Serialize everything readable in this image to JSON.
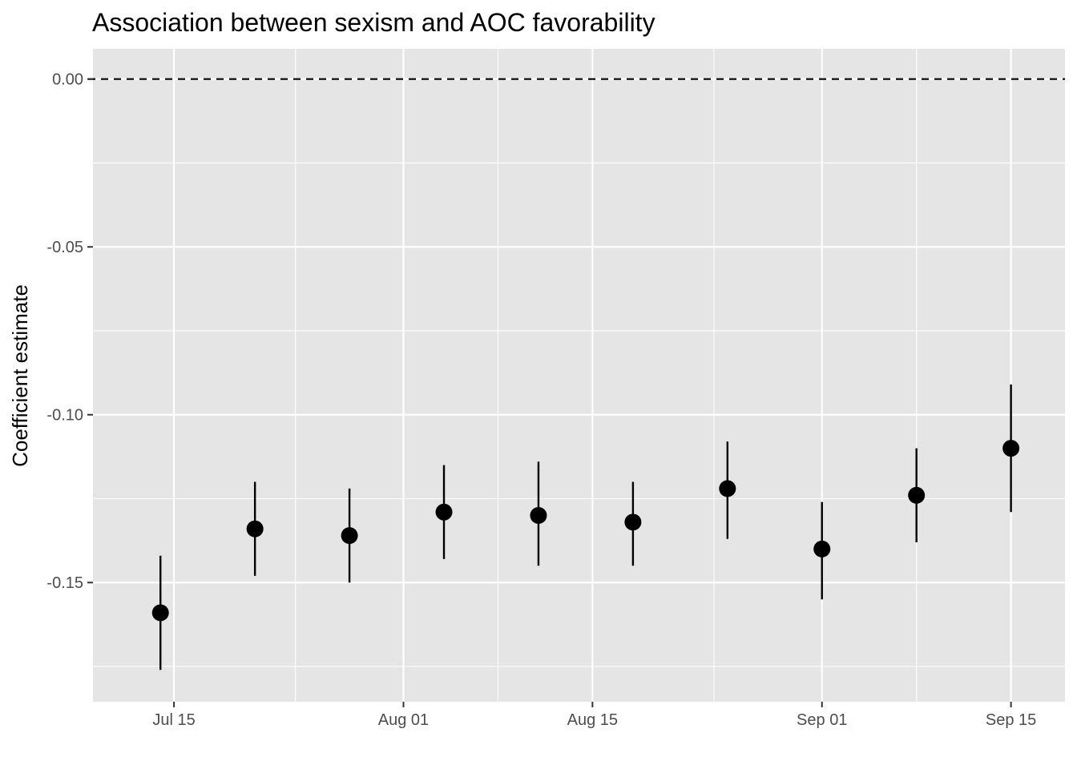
{
  "chart_data": {
    "type": "scatter",
    "title": "Association between sexism and AOC favorability",
    "xlabel": "",
    "ylabel": "Coefficient estimate",
    "x_axis": {
      "type": "date",
      "range": [
        "2019-07-09",
        "2019-09-19"
      ],
      "ticks": [
        {
          "date": "2019-07-15",
          "label": "Jul 15"
        },
        {
          "date": "2019-08-01",
          "label": "Aug 01"
        },
        {
          "date": "2019-08-15",
          "label": "Aug 15"
        },
        {
          "date": "2019-09-01",
          "label": "Sep 01"
        },
        {
          "date": "2019-09-15",
          "label": "Sep 15"
        }
      ],
      "minor_ticks": [
        "2019-07-24",
        "2019-08-08",
        "2019-08-24",
        "2019-09-08"
      ]
    },
    "y_axis": {
      "range": [
        -0.1855,
        0.009
      ],
      "ticks": [
        {
          "value": 0.0,
          "label": "0.00"
        },
        {
          "value": -0.05,
          "label": "-0.05"
        },
        {
          "value": -0.1,
          "label": "-0.10"
        },
        {
          "value": -0.15,
          "label": "-0.15"
        }
      ],
      "minor_ticks": [
        -0.025,
        -0.075,
        -0.125,
        -0.175
      ]
    },
    "reference_line": {
      "y": 0.0,
      "style": "dashed"
    },
    "grid": true,
    "legend": "none",
    "colors": {
      "panel": "#e5e5e5",
      "grid": "#ffffff",
      "marks": "#000000",
      "tick_text": "#4d4d4d"
    },
    "points": [
      {
        "date": "2019-07-14",
        "estimate": -0.159,
        "lower": -0.176,
        "upper": -0.142
      },
      {
        "date": "2019-07-21",
        "estimate": -0.134,
        "lower": -0.148,
        "upper": -0.12
      },
      {
        "date": "2019-07-28",
        "estimate": -0.136,
        "lower": -0.15,
        "upper": -0.122
      },
      {
        "date": "2019-08-04",
        "estimate": -0.129,
        "lower": -0.143,
        "upper": -0.115
      },
      {
        "date": "2019-08-11",
        "estimate": -0.13,
        "lower": -0.145,
        "upper": -0.114
      },
      {
        "date": "2019-08-18",
        "estimate": -0.132,
        "lower": -0.145,
        "upper": -0.12
      },
      {
        "date": "2019-08-25",
        "estimate": -0.122,
        "lower": -0.137,
        "upper": -0.108
      },
      {
        "date": "2019-09-01",
        "estimate": -0.14,
        "lower": -0.155,
        "upper": -0.126
      },
      {
        "date": "2019-09-08",
        "estimate": -0.124,
        "lower": -0.138,
        "upper": -0.11
      },
      {
        "date": "2019-09-15",
        "estimate": -0.11,
        "lower": -0.129,
        "upper": -0.091
      }
    ]
  }
}
